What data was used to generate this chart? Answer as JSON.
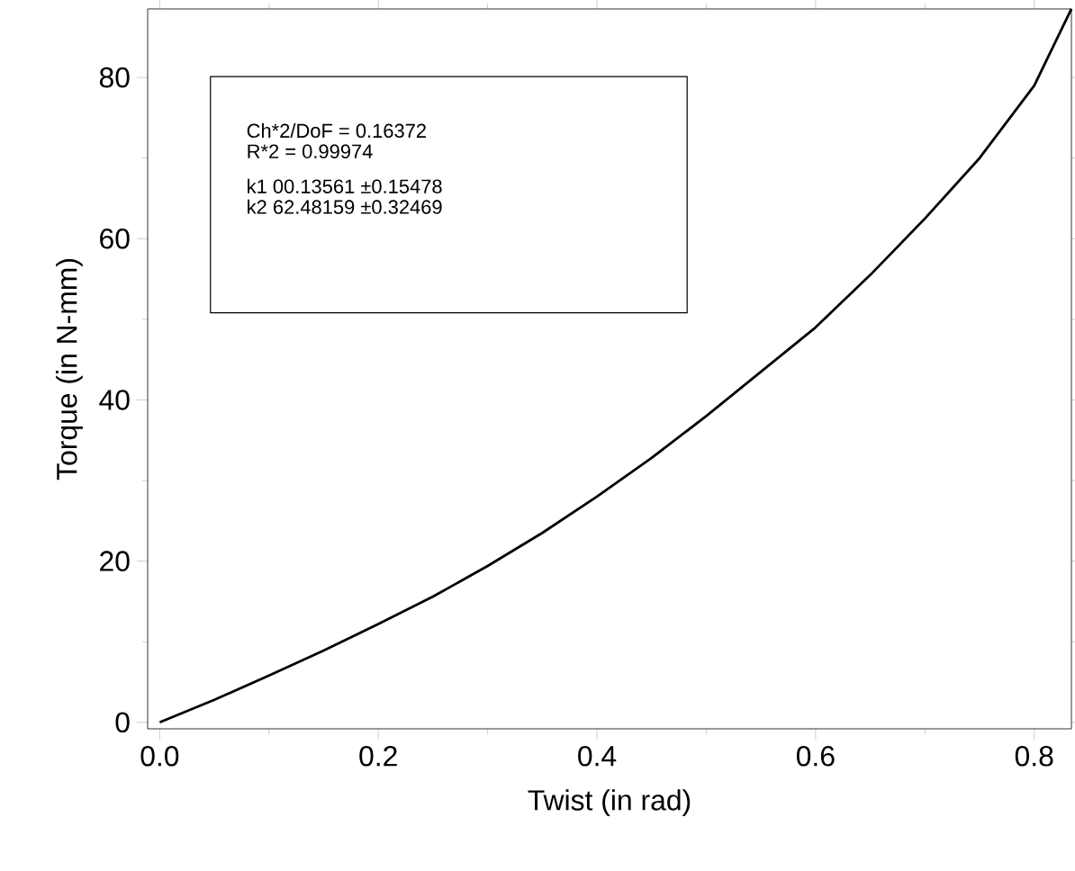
{
  "chart_data": {
    "type": "line",
    "xlabel": "Twist (in rad)",
    "ylabel": "Torque (in N-mm)",
    "x": [
      0,
      0.05,
      0.1,
      0.15,
      0.2,
      0.25,
      0.3,
      0.35,
      0.4,
      0.45,
      0.5,
      0.55,
      0.6,
      0.65,
      0.7,
      0.75,
      0.8,
      0.834
    ],
    "series": [
      {
        "color": "#000000",
        "values": [
          0,
          2.8,
          5.8,
          8.9,
          12.2,
          15.6,
          19.4,
          23.5,
          28.0,
          32.8,
          38.0,
          43.5,
          49.0,
          55.5,
          62.5,
          70.0,
          79.0,
          88.5
        ]
      }
    ],
    "xlim": [
      -0.011,
      0.834
    ],
    "ylim": [
      -0.8,
      88.5
    ],
    "xticks": [
      {
        "value": 0,
        "label": "0.0"
      },
      0.2,
      0.4,
      0.6,
      0.8
    ],
    "yticks": [
      0,
      20,
      40,
      60,
      80
    ],
    "annotations": [
      "Ch*2/DoF     = 0.16372",
      "R*2    =  0.99974",
      "k1      00.13561         ±0.15478",
      "k2      62.48159         ±0.32469"
    ],
    "marker": "none",
    "line_style": "solid"
  }
}
